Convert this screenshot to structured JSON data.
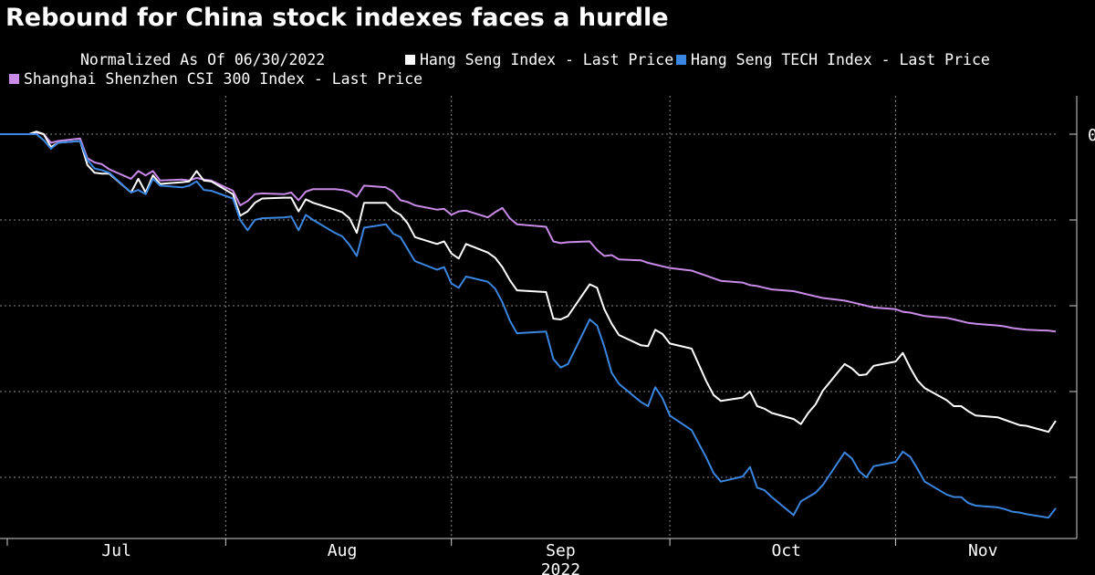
{
  "title": "Rebound for China stock indexes faces a hurdle",
  "subtitle": "Normalized As Of 06/30/2022",
  "colors": {
    "background": "#000000",
    "hang_seng": "#ffffff",
    "hang_seng_tech": "#3a86e0",
    "csi300": "#c98ae8",
    "grid": "#8a8a8a"
  },
  "chart_data": {
    "type": "line",
    "xlabel": "2022",
    "ylabel": "",
    "x_ticks": [
      "Jul",
      "Aug",
      "Sep",
      "Oct",
      "Nov"
    ],
    "ylim": [
      -45,
      4
    ],
    "y_ticks": [
      0,
      -10,
      -20,
      -30,
      -40
    ],
    "y_tick_labels": [
      "0",
      "",
      "",
      "",
      ""
    ],
    "grid": true,
    "legend_position": "top",
    "x": [
      "2022-06-30",
      "2022-07-04",
      "2022-07-05",
      "2022-07-06",
      "2022-07-07",
      "2022-07-08",
      "2022-07-11",
      "2022-07-12",
      "2022-07-13",
      "2022-07-14",
      "2022-07-15",
      "2022-07-18",
      "2022-07-19",
      "2022-07-20",
      "2022-07-21",
      "2022-07-22",
      "2022-07-25",
      "2022-07-26",
      "2022-07-27",
      "2022-07-28",
      "2022-07-29",
      "2022-08-01",
      "2022-08-02",
      "2022-08-03",
      "2022-08-04",
      "2022-08-05",
      "2022-08-08",
      "2022-08-09",
      "2022-08-10",
      "2022-08-11",
      "2022-08-12",
      "2022-08-15",
      "2022-08-16",
      "2022-08-17",
      "2022-08-18",
      "2022-08-19",
      "2022-08-22",
      "2022-08-23",
      "2022-08-24",
      "2022-08-25",
      "2022-08-26",
      "2022-08-29",
      "2022-08-30",
      "2022-08-31",
      "2022-09-01",
      "2022-09-02",
      "2022-09-05",
      "2022-09-06",
      "2022-09-07",
      "2022-09-08",
      "2022-09-09",
      "2022-09-13",
      "2022-09-14",
      "2022-09-15",
      "2022-09-16",
      "2022-09-19",
      "2022-09-20",
      "2022-09-21",
      "2022-09-22",
      "2022-09-23",
      "2022-09-26",
      "2022-09-27",
      "2022-09-28",
      "2022-09-29",
      "2022-09-30",
      "2022-10-03",
      "2022-10-05",
      "2022-10-06",
      "2022-10-07",
      "2022-10-10",
      "2022-10-11",
      "2022-10-12",
      "2022-10-13",
      "2022-10-14",
      "2022-10-17",
      "2022-10-18",
      "2022-10-19",
      "2022-10-20",
      "2022-10-21",
      "2022-10-24",
      "2022-10-25",
      "2022-10-26",
      "2022-10-27",
      "2022-10-28",
      "2022-10-31",
      "2022-11-01",
      "2022-11-02",
      "2022-11-03",
      "2022-11-04",
      "2022-11-07",
      "2022-11-08",
      "2022-11-09",
      "2022-11-10",
      "2022-11-11",
      "2022-11-14",
      "2022-11-15",
      "2022-11-16",
      "2022-11-17",
      "2022-11-18",
      "2022-11-21",
      "2022-11-22"
    ],
    "series": [
      {
        "name": "Hang Seng Index - Last Price",
        "color": "#ffffff",
        "values": [
          0,
          0,
          0.3,
          0,
          -1.5,
          -1.0,
          -0.8,
          -3.6,
          -4.5,
          -4.6,
          -4.6,
          -6.8,
          -5.2,
          -6.8,
          -4.8,
          -5.8,
          -5.6,
          -5.5,
          -4.3,
          -5.4,
          -5.5,
          -7.0,
          -9.5,
          -9.0,
          -8.0,
          -7.5,
          -7.4,
          -7.4,
          -9.0,
          -7.6,
          -8.0,
          -8.8,
          -9.1,
          -9.8,
          -11.5,
          -8.0,
          -8.0,
          -8.9,
          -9.4,
          -10.4,
          -12.0,
          -12.8,
          -12.5,
          -13.9,
          -14.5,
          -12.8,
          -13.8,
          -14.4,
          -15.5,
          -17.0,
          -18.2,
          -18.4,
          -21.5,
          -21.6,
          -21.2,
          -17.5,
          -17.9,
          -20.4,
          -22.1,
          -23.4,
          -24.6,
          -24.7,
          -22.8,
          -23.3,
          -24.4,
          -25.0,
          -28.8,
          -30.4,
          -31.1,
          -30.7,
          -30.0,
          -31.7,
          -32.0,
          -32.5,
          -33.2,
          -33.8,
          -32.5,
          -31.5,
          -29.9,
          -26.8,
          -27.3,
          -28.1,
          -28.0,
          -27.0,
          -26.5,
          -25.5,
          -27.2,
          -28.7,
          -29.6,
          -31.0,
          -31.7,
          -31.7,
          -32.3,
          -32.8,
          -33.0,
          -33.3,
          -33.6,
          -33.9,
          -34.0,
          -34.7,
          -33.4
        ]
      },
      {
        "name": "Hang Seng TECH Index - Last Price",
        "color": "#3a86e0",
        "values": [
          0,
          0,
          0,
          -0.7,
          -1.7,
          -1.0,
          -0.8,
          -3.0,
          -4.0,
          -4.2,
          -4.5,
          -6.8,
          -6.5,
          -7.0,
          -5.2,
          -6.0,
          -6.2,
          -6.0,
          -5.5,
          -6.5,
          -6.6,
          -7.5,
          -10.0,
          -11.2,
          -10.0,
          -9.8,
          -9.7,
          -9.6,
          -11.2,
          -9.4,
          -10.0,
          -11.5,
          -11.9,
          -12.9,
          -14.2,
          -10.9,
          -10.5,
          -11.6,
          -12.0,
          -13.4,
          -14.8,
          -15.8,
          -15.5,
          -17.4,
          -17.9,
          -16.6,
          -17.2,
          -18.0,
          -19.6,
          -21.7,
          -23.2,
          -23.0,
          -26.2,
          -27.2,
          -26.8,
          -21.6,
          -22.3,
          -24.8,
          -27.8,
          -29.1,
          -31.2,
          -31.7,
          -29.5,
          -30.8,
          -32.8,
          -34.5,
          -37.7,
          -39.5,
          -40.5,
          -39.9,
          -38.8,
          -41.2,
          -41.5,
          -42.3,
          -44.4,
          -42.8,
          -42.3,
          -41.8,
          -40.9,
          -37.1,
          -37.8,
          -39.3,
          -40.0,
          -38.7,
          -38.2,
          -37.0,
          -37.6,
          -39.0,
          -40.5,
          -42.0,
          -42.3,
          -42.3,
          -43.0,
          -43.3,
          -43.5,
          -43.7,
          -44.0,
          -44.1,
          -44.3,
          -44.7,
          -43.6
        ]
      },
      {
        "name": "Shanghai Shenzhen CSI 300 Index - Last Price",
        "color": "#c98ae8",
        "values": [
          0,
          0,
          0.2,
          0,
          -1.0,
          -0.8,
          -0.5,
          -2.8,
          -3.3,
          -3.5,
          -4.1,
          -5.2,
          -4.3,
          -4.8,
          -4.3,
          -5.4,
          -5.3,
          -5.4,
          -5.1,
          -5.3,
          -5.4,
          -6.6,
          -8.3,
          -7.8,
          -7.0,
          -6.9,
          -7.0,
          -6.8,
          -7.7,
          -6.7,
          -6.4,
          -6.4,
          -6.5,
          -6.7,
          -7.3,
          -6.0,
          -6.2,
          -6.7,
          -7.7,
          -7.9,
          -8.3,
          -8.8,
          -8.7,
          -9.4,
          -9.0,
          -8.9,
          -9.7,
          -9.1,
          -8.6,
          -9.8,
          -10.5,
          -10.8,
          -12.5,
          -12.7,
          -12.6,
          -12.5,
          -13.5,
          -14.2,
          -14.1,
          -14.6,
          -14.7,
          -15.0,
          -15.2,
          -15.4,
          -15.6,
          -15.9,
          -16.5,
          -16.8,
          -17.1,
          -17.3,
          -17.6,
          -17.7,
          -17.9,
          -18.1,
          -18.3,
          -18.5,
          -18.7,
          -18.9,
          -19.1,
          -19.4,
          -19.6,
          -19.8,
          -20.0,
          -20.2,
          -20.4,
          -20.7,
          -20.8,
          -21.0,
          -21.2,
          -21.4,
          -21.6,
          -21.8,
          -22.0,
          -22.1,
          -22.3,
          -22.4,
          -22.6,
          -22.7,
          -22.8,
          -22.9,
          -23.0
        ]
      }
    ]
  }
}
